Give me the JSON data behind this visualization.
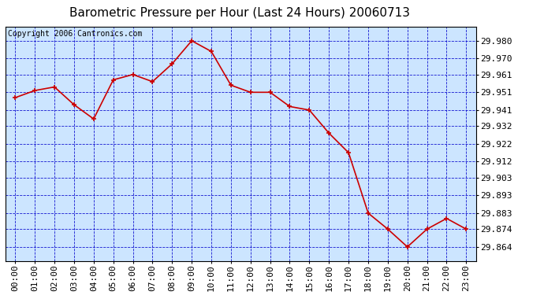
{
  "title": "Barometric Pressure per Hour (Last 24 Hours) 20060713",
  "copyright": "Copyright 2006 Cantronics.com",
  "hours": [
    "00:00",
    "01:00",
    "02:00",
    "03:00",
    "04:00",
    "05:00",
    "06:00",
    "07:00",
    "08:00",
    "09:00",
    "10:00",
    "11:00",
    "12:00",
    "13:00",
    "14:00",
    "15:00",
    "16:00",
    "17:00",
    "18:00",
    "19:00",
    "20:00",
    "21:00",
    "22:00",
    "23:00"
  ],
  "values": [
    29.948,
    29.952,
    29.954,
    29.944,
    29.936,
    29.958,
    29.961,
    29.957,
    29.967,
    29.98,
    29.974,
    29.955,
    29.951,
    29.951,
    29.943,
    29.941,
    29.928,
    29.917,
    29.883,
    29.874,
    29.864,
    29.874,
    29.88,
    29.874
  ],
  "yticks": [
    29.864,
    29.874,
    29.883,
    29.893,
    29.903,
    29.912,
    29.922,
    29.932,
    29.941,
    29.951,
    29.961,
    29.97,
    29.98
  ],
  "ylim_min": 29.856,
  "ylim_max": 29.988,
  "line_color": "#cc0000",
  "marker_color": "#cc0000",
  "bg_color": "#cce5ff",
  "grid_color": "#0000cc",
  "outer_bg": "#ffffff",
  "title_color": "#000000",
  "copyright_color": "#000000",
  "title_fontsize": 11,
  "copyright_fontsize": 7,
  "tick_fontsize": 8,
  "xtick_fontsize": 8
}
